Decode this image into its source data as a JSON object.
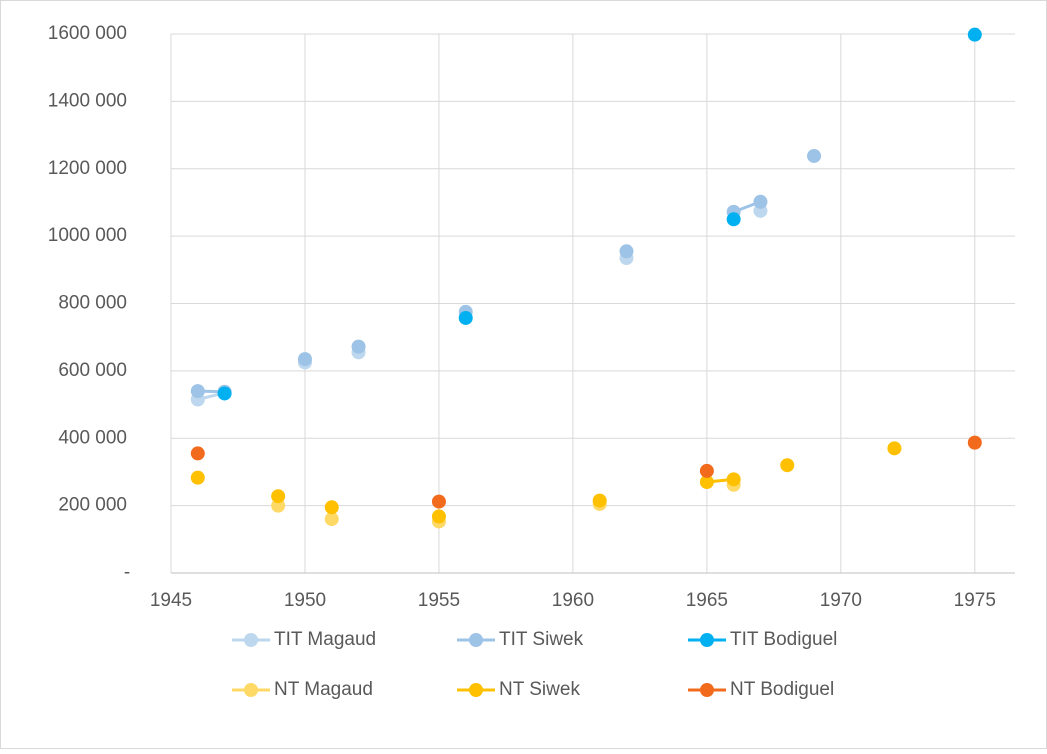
{
  "chart_data": {
    "type": "scatter",
    "xlim": [
      1945,
      1976.5
    ],
    "xticks": [
      1945,
      1950,
      1955,
      1960,
      1965,
      1970,
      1975
    ],
    "ylim": [
      0,
      1600000
    ],
    "yticks": [
      {
        "value": 0,
        "label": "-"
      },
      {
        "value": 200000,
        "label": "200 000"
      },
      {
        "value": 400000,
        "label": "400 000"
      },
      {
        "value": 600000,
        "label": "600 000"
      },
      {
        "value": 800000,
        "label": "800 000"
      },
      {
        "value": 1000000,
        "label": "1000 000"
      },
      {
        "value": 1200000,
        "label": "1200 000"
      },
      {
        "value": 1400000,
        "label": "1400 000"
      },
      {
        "value": 1600000,
        "label": "1600 000"
      }
    ],
    "grid": true,
    "legend": "bottom",
    "series": [
      {
        "name": "TIT Magaud",
        "color": "#bdd7ee",
        "x": [
          1946,
          1947,
          null,
          1950,
          null,
          1952,
          null,
          1962,
          null,
          1967
        ],
        "values": [
          515000,
          535000,
          null,
          625000,
          null,
          655000,
          null,
          935000,
          null,
          1075000
        ]
      },
      {
        "name": "TIT Siwek",
        "color": "#9dc3e6",
        "x": [
          1946,
          1947,
          null,
          1950,
          null,
          1952,
          null,
          1956,
          null,
          1962,
          null,
          1966,
          1967,
          null,
          1969
        ],
        "values": [
          540000,
          538000,
          null,
          635000,
          null,
          672000,
          null,
          775000,
          null,
          955000,
          null,
          1072000,
          1102000,
          null,
          1238000
        ]
      },
      {
        "name": "TIT Bodiguel",
        "color": "#00b0f0",
        "x": [
          1947,
          null,
          1956,
          null,
          1966,
          null,
          1975
        ],
        "values": [
          533000,
          null,
          757000,
          null,
          1050000,
          null,
          1598000
        ]
      },
      {
        "name": "NT Magaud",
        "color": "#ffd966",
        "x": [
          1949,
          null,
          1951,
          null,
          1955,
          null,
          1961,
          null,
          1966
        ],
        "values": [
          200000,
          null,
          160000,
          null,
          153000,
          null,
          205000,
          null,
          262000
        ]
      },
      {
        "name": "NT Siwek",
        "color": "#ffc000",
        "x": [
          1946,
          null,
          1949,
          null,
          1951,
          null,
          1955,
          null,
          1961,
          null,
          1965,
          1966,
          null,
          1968,
          null,
          1972
        ],
        "values": [
          283000,
          null,
          228000,
          null,
          195000,
          null,
          168000,
          null,
          215000,
          null,
          270000,
          278000,
          null,
          320000,
          null,
          370000
        ]
      },
      {
        "name": "NT Bodiguel",
        "color": "#f26b1d",
        "x": [
          1946,
          null,
          1955,
          null,
          1965,
          null,
          1975
        ],
        "values": [
          355000,
          null,
          212000,
          null,
          303000,
          null,
          387000
        ]
      }
    ]
  }
}
